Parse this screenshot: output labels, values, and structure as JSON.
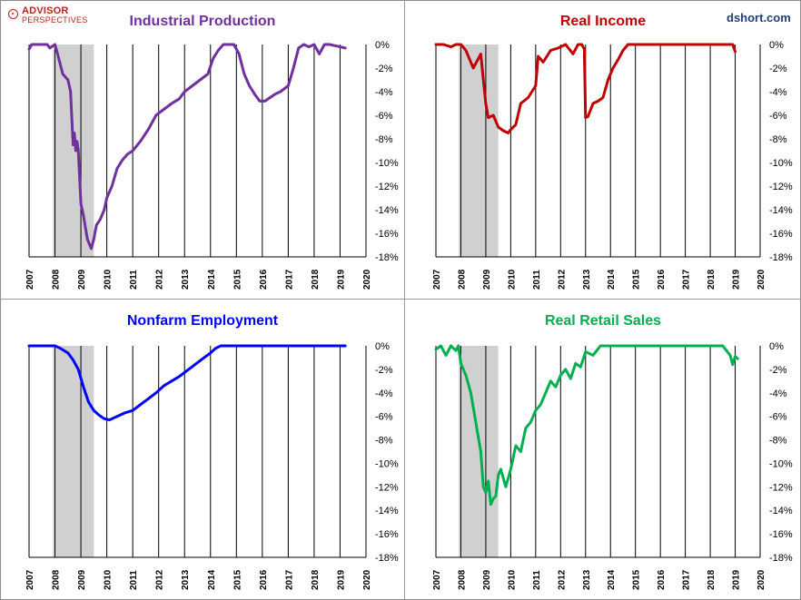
{
  "logo": {
    "line1": "ADVISOR",
    "line2": "PERSPECTIVES",
    "color": "#b3261e"
  },
  "source": "dshort.com",
  "chart_data": [
    {
      "type": "line",
      "title": "Industrial Production",
      "color": "#7030a0",
      "title_color": "#7030a0",
      "recession": [
        2007.92,
        2009.5
      ],
      "xlim": [
        2007,
        2020
      ],
      "ylim": [
        -18,
        0
      ],
      "x_ticks": [
        "2007",
        "2008",
        "2009",
        "2010",
        "2011",
        "2012",
        "2013",
        "2014",
        "2015",
        "2016",
        "2017",
        "2018",
        "2019",
        "2020"
      ],
      "y_ticks": [
        "0%",
        "-2%",
        "-4%",
        "-6%",
        "-8%",
        "-10%",
        "-12%",
        "-14%",
        "-16%",
        "-18%"
      ],
      "series": [
        {
          "x": [
            2007.0,
            2007.1,
            2007.3,
            2007.5,
            2007.7,
            2007.8,
            2008.0,
            2008.1,
            2008.3,
            2008.5,
            2008.6,
            2008.7,
            2008.75,
            2008.8,
            2008.85,
            2008.9,
            2009.0,
            2009.1,
            2009.25,
            2009.4,
            2009.5,
            2009.6,
            2009.75,
            2009.9,
            2010.0,
            2010.2,
            2010.4,
            2010.6,
            2010.8,
            2011.0,
            2011.3,
            2011.6,
            2011.9,
            2012.2,
            2012.5,
            2012.8,
            2013.0,
            2013.3,
            2013.6,
            2013.9,
            2014.1,
            2014.3,
            2014.5,
            2014.7,
            2014.9,
            2015.1,
            2015.3,
            2015.5,
            2015.7,
            2015.9,
            2016.1,
            2016.3,
            2016.5,
            2016.7,
            2017.0,
            2017.2,
            2017.4,
            2017.6,
            2017.8,
            2018.0,
            2018.2,
            2018.4,
            2018.6,
            2018.8,
            2019.0,
            2019.2
          ],
          "y": [
            -0.4,
            0.0,
            0.0,
            0.0,
            0.0,
            -0.3,
            0.0,
            -0.8,
            -2.5,
            -3.0,
            -4.0,
            -8.5,
            -7.5,
            -9.0,
            -8.2,
            -9.0,
            -13.5,
            -14.5,
            -16.5,
            -17.3,
            -16.5,
            -15.3,
            -14.8,
            -14.0,
            -13.0,
            -12.0,
            -10.5,
            -9.8,
            -9.3,
            -9.0,
            -8.2,
            -7.2,
            -6.0,
            -5.5,
            -5.0,
            -4.6,
            -4.0,
            -3.5,
            -3.0,
            -2.5,
            -1.2,
            -0.5,
            0.0,
            0.0,
            0.0,
            -0.8,
            -2.5,
            -3.5,
            -4.2,
            -4.8,
            -4.8,
            -4.5,
            -4.2,
            -4.0,
            -3.5,
            -2.0,
            -0.3,
            0.0,
            -0.2,
            0.0,
            -0.8,
            0.0,
            0.0,
            -0.1,
            -0.2,
            -0.3
          ]
        }
      ]
    },
    {
      "type": "line",
      "title": "Real Income",
      "color": "#c00000",
      "title_color": "#c00000",
      "recession": [
        2007.92,
        2009.5
      ],
      "xlim": [
        2007,
        2020
      ],
      "ylim": [
        -18,
        0
      ],
      "x_ticks": [
        "2007",
        "2008",
        "2009",
        "2010",
        "2011",
        "2012",
        "2013",
        "2014",
        "2015",
        "2016",
        "2017",
        "2018",
        "2019",
        "2020"
      ],
      "y_ticks": [
        "0%",
        "-2%",
        "-4%",
        "-6%",
        "-8%",
        "-10%",
        "-12%",
        "-14%",
        "-16%",
        "-18%"
      ],
      "series": [
        {
          "x": [
            2007.0,
            2007.3,
            2007.6,
            2007.8,
            2008.0,
            2008.2,
            2008.4,
            2008.5,
            2008.7,
            2008.8,
            2008.9,
            2009.0,
            2009.1,
            2009.3,
            2009.5,
            2009.7,
            2009.9,
            2010.0,
            2010.2,
            2010.4,
            2010.7,
            2011.0,
            2011.1,
            2011.3,
            2011.6,
            2011.9,
            2012.2,
            2012.5,
            2012.7,
            2012.85,
            2012.95,
            2013.0,
            2013.1,
            2013.3,
            2013.5,
            2013.7,
            2013.9,
            2014.1,
            2014.3,
            2014.5,
            2014.7,
            2015.0,
            2015.5,
            2016.0,
            2016.5,
            2017.0,
            2017.5,
            2018.0,
            2018.5,
            2018.9,
            2019.0
          ],
          "y": [
            0.0,
            0.0,
            -0.2,
            0.0,
            0.0,
            -0.5,
            -1.5,
            -2.0,
            -1.2,
            -0.8,
            -3.0,
            -5.0,
            -6.2,
            -6.0,
            -7.0,
            -7.3,
            -7.5,
            -7.2,
            -6.8,
            -5.0,
            -4.5,
            -3.5,
            -1.0,
            -1.5,
            -0.5,
            -0.3,
            0.0,
            -0.8,
            0.0,
            0.0,
            -0.4,
            -6.2,
            -6.1,
            -5.0,
            -4.8,
            -4.5,
            -3.0,
            -2.0,
            -1.3,
            -0.5,
            0.0,
            0.0,
            0.0,
            0.0,
            0.0,
            0.0,
            0.0,
            0.0,
            0.0,
            0.0,
            -0.6
          ]
        }
      ]
    },
    {
      "type": "line",
      "title": "Nonfarm Employment",
      "color": "#0000ff",
      "title_color": "#0000ff",
      "recession": [
        2007.92,
        2009.5
      ],
      "xlim": [
        2007,
        2020
      ],
      "ylim": [
        -18,
        0
      ],
      "x_ticks": [
        "2007",
        "2008",
        "2009",
        "2010",
        "2011",
        "2012",
        "2013",
        "2014",
        "2015",
        "2016",
        "2017",
        "2018",
        "2019",
        "2020"
      ],
      "y_ticks": [
        "0%",
        "-2%",
        "-4%",
        "-6%",
        "-8%",
        "-10%",
        "-12%",
        "-14%",
        "-16%",
        "-18%"
      ],
      "series": [
        {
          "x": [
            2007.0,
            2007.5,
            2008.0,
            2008.2,
            2008.5,
            2008.7,
            2008.9,
            2009.1,
            2009.3,
            2009.5,
            2009.7,
            2009.9,
            2010.1,
            2010.4,
            2010.7,
            2011.0,
            2011.3,
            2011.6,
            2011.9,
            2012.2,
            2012.5,
            2012.8,
            2013.1,
            2013.4,
            2013.7,
            2014.0,
            2014.2,
            2014.4,
            2015.0,
            2016.0,
            2017.0,
            2018.0,
            2019.0,
            2019.2
          ],
          "y": [
            0.0,
            0.0,
            0.0,
            -0.2,
            -0.6,
            -1.2,
            -2.0,
            -3.5,
            -4.8,
            -5.5,
            -5.9,
            -6.2,
            -6.3,
            -6.0,
            -5.7,
            -5.5,
            -5.0,
            -4.5,
            -4.0,
            -3.4,
            -3.0,
            -2.6,
            -2.1,
            -1.6,
            -1.1,
            -0.6,
            -0.2,
            0.0,
            0.0,
            0.0,
            0.0,
            0.0,
            0.0,
            0.0
          ]
        }
      ]
    },
    {
      "type": "line",
      "title": "Real Retail Sales",
      "color": "#00b050",
      "title_color": "#00b050",
      "recession": [
        2007.92,
        2009.5
      ],
      "xlim": [
        2007,
        2020
      ],
      "ylim": [
        -18,
        0
      ],
      "x_ticks": [
        "2007",
        "2008",
        "2009",
        "2010",
        "2011",
        "2012",
        "2013",
        "2014",
        "2015",
        "2016",
        "2017",
        "2018",
        "2019",
        "2020"
      ],
      "y_ticks": [
        "0%",
        "-2%",
        "-4%",
        "-6%",
        "-8%",
        "-10%",
        "-12%",
        "-14%",
        "-16%",
        "-18%"
      ],
      "series": [
        {
          "x": [
            2007.0,
            2007.2,
            2007.4,
            2007.6,
            2007.8,
            2007.9,
            2008.0,
            2008.2,
            2008.4,
            2008.6,
            2008.8,
            2008.9,
            2009.0,
            2009.1,
            2009.2,
            2009.3,
            2009.4,
            2009.5,
            2009.6,
            2009.8,
            2010.0,
            2010.2,
            2010.4,
            2010.6,
            2010.8,
            2011.0,
            2011.2,
            2011.4,
            2011.6,
            2011.8,
            2012.0,
            2012.2,
            2012.4,
            2012.6,
            2012.8,
            2013.0,
            2013.3,
            2013.6,
            2014.0,
            2014.5,
            2015.0,
            2015.5,
            2016.0,
            2016.5,
            2017.0,
            2017.5,
            2018.0,
            2018.5,
            2018.8,
            2018.9,
            2019.0,
            2019.1
          ],
          "y": [
            -0.3,
            0.0,
            -0.8,
            0.0,
            -0.4,
            0.0,
            -1.5,
            -2.5,
            -4.0,
            -6.5,
            -9.0,
            -12.0,
            -12.5,
            -11.5,
            -13.5,
            -13.0,
            -12.8,
            -11.0,
            -10.5,
            -12.0,
            -10.5,
            -8.5,
            -9.0,
            -7.0,
            -6.5,
            -5.5,
            -5.0,
            -4.0,
            -3.0,
            -3.5,
            -2.5,
            -2.0,
            -2.8,
            -1.5,
            -1.8,
            -0.5,
            -0.8,
            0.0,
            0.0,
            0.0,
            0.0,
            0.0,
            0.0,
            0.0,
            0.0,
            0.0,
            0.0,
            0.0,
            -0.8,
            -1.6,
            -0.9,
            -1.1
          ]
        }
      ]
    }
  ]
}
